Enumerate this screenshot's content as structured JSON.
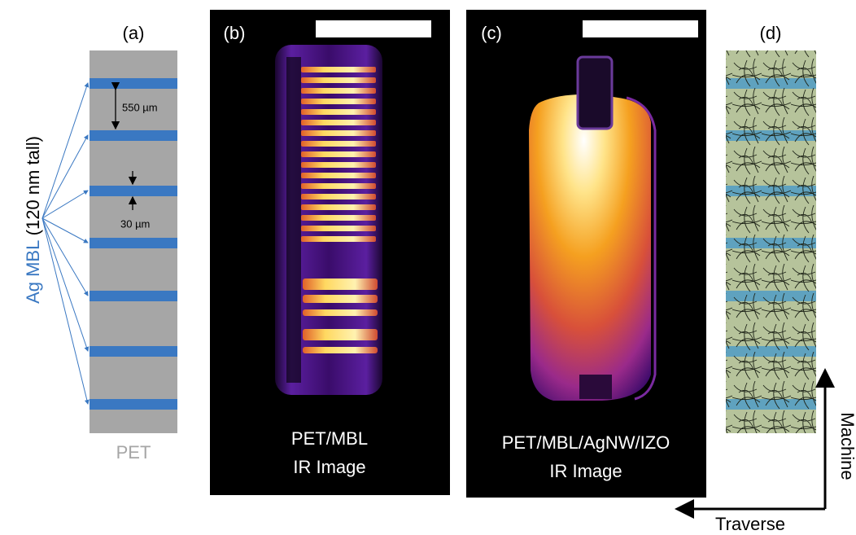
{
  "panels": [
    {
      "label": "(a)",
      "side_label_colored": "Ag MBL",
      "side_label": "(120 nm tall)",
      "spacing_label": "550 µm",
      "width_label": "30 µm",
      "substrate_label": "PET"
    },
    {
      "label": "(b)",
      "caption_line1": "PET/MBL",
      "caption_line2": "IR Image"
    },
    {
      "label": "(c)",
      "caption_line1": "PET/MBL/AgNW/IZO",
      "caption_line2": "IR Image"
    },
    {
      "label": "(d)",
      "axis_vertical": "Machine",
      "axis_horizontal": "Traverse"
    }
  ]
}
